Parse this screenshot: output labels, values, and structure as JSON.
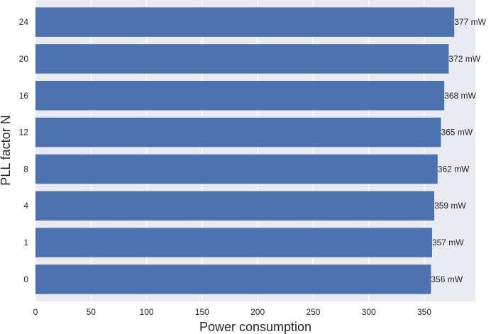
{
  "chart_data": {
    "type": "bar",
    "orientation": "horizontal",
    "categories": [
      "0",
      "1",
      "4",
      "8",
      "12",
      "16",
      "20",
      "24"
    ],
    "values": [
      356,
      357,
      359,
      362,
      365,
      368,
      372,
      377
    ],
    "data_labels": [
      "356 mW",
      "357 mW",
      "359 mW",
      "362 mW",
      "365 mW",
      "368 mW",
      "372 mW",
      "377 mW"
    ],
    "xlabel": "Power consumption",
    "ylabel": "PLL factor N",
    "xlim": [
      0,
      396
    ],
    "xticks": [
      "0",
      "50",
      "100",
      "150",
      "200",
      "250",
      "300",
      "350"
    ],
    "grid": true,
    "colors": {
      "bar": "#4c72b0",
      "background": "#eaeaf2",
      "grid": "#ffffff"
    }
  }
}
